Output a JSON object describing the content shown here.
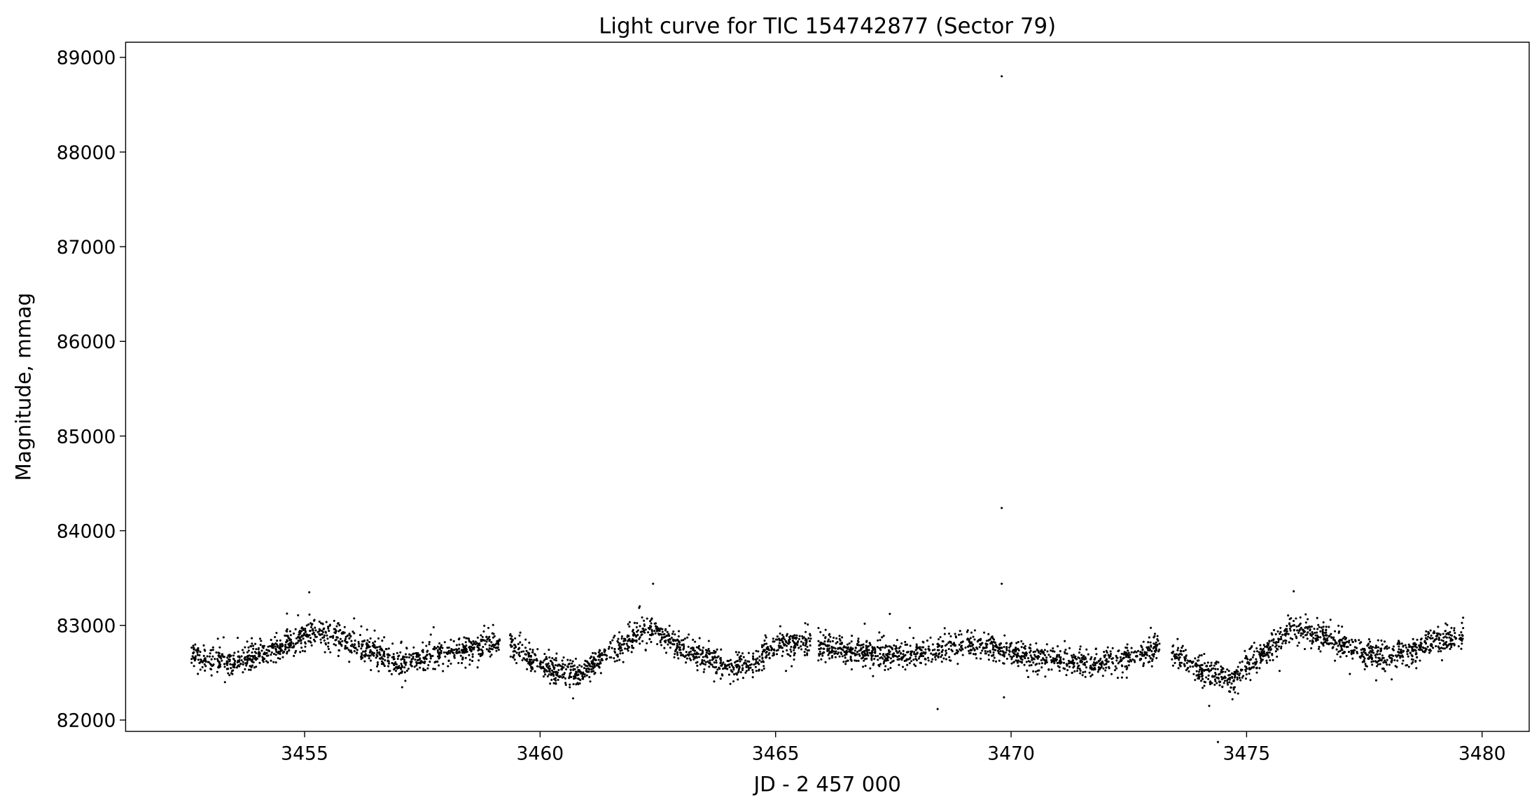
{
  "chart_data": {
    "type": "scatter",
    "title": "Light curve for TIC 154742877 (Sector 79)",
    "xlabel": "JD - 2 457 000",
    "ylabel": "Magnitude, mmag",
    "xlim": [
      3451.2,
      3481.0
    ],
    "ylim": [
      81880,
      89160
    ],
    "x_ticks": [
      3455,
      3460,
      3465,
      3470,
      3475,
      3480
    ],
    "y_ticks": [
      82000,
      83000,
      84000,
      85000,
      86000,
      87000,
      88000,
      89000
    ],
    "grid": false,
    "marker_color": "#000000",
    "data_segments": [
      {
        "x_start": 3452.6,
        "x_end": 3459.15
      },
      {
        "x_start": 3459.35,
        "x_end": 3465.75
      },
      {
        "x_start": 3465.9,
        "x_end": 3473.15
      },
      {
        "x_start": 3473.4,
        "x_end": 3479.6
      }
    ],
    "trend": {
      "x": [
        3452.6,
        3453.5,
        3454.3,
        3455.2,
        3456.0,
        3457.0,
        3458.0,
        3459.15,
        3459.35,
        3460.0,
        3460.8,
        3461.5,
        3462.3,
        3463.0,
        3464.0,
        3464.5,
        3465.0,
        3465.75,
        3465.9,
        3467.0,
        3468.0,
        3469.0,
        3469.8,
        3470.5,
        3471.5,
        3472.3,
        3473.15,
        3473.4,
        3474.0,
        3474.7,
        3475.3,
        3476.0,
        3476.8,
        3477.5,
        3478.3,
        3479.0,
        3479.6
      ],
      "y": [
        82700,
        82600,
        82720,
        82940,
        82830,
        82600,
        82720,
        82830,
        82790,
        82580,
        82470,
        82720,
        82980,
        82760,
        82540,
        82600,
        82780,
        82830,
        82780,
        82700,
        82700,
        82790,
        82760,
        82650,
        82600,
        82620,
        82780,
        82720,
        82530,
        82430,
        82680,
        82980,
        82850,
        82690,
        82700,
        82830,
        82870
      ]
    },
    "band_half_width": 130,
    "outliers": [
      {
        "x": 3469.8,
        "y": 88800
      },
      {
        "x": 3469.8,
        "y": 84240
      },
      {
        "x": 3469.8,
        "y": 83440
      },
      {
        "x": 3469.85,
        "y": 82240
      },
      {
        "x": 3462.4,
        "y": 83440
      },
      {
        "x": 3455.1,
        "y": 83350
      },
      {
        "x": 3476.0,
        "y": 83360
      },
      {
        "x": 3460.7,
        "y": 82230
      },
      {
        "x": 3474.7,
        "y": 82220
      }
    ]
  }
}
